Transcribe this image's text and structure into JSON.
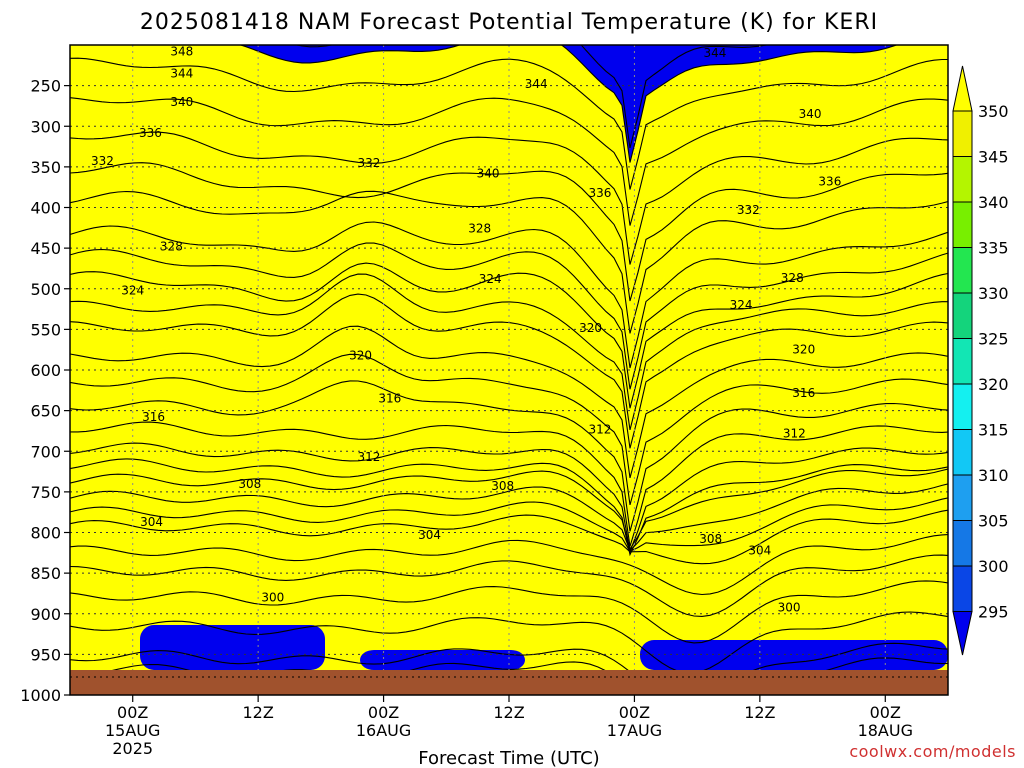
{
  "chart_data": {
    "type": "contour",
    "title": "2025081418 NAM Forecast Potential Temperature (K) for KERI",
    "xlabel": "Forecast Time (UTC)",
    "credit": "coolwx.com/models",
    "x_ticks": [
      {
        "hour": 6,
        "label": "00Z",
        "date": "15AUG",
        "year": "2025"
      },
      {
        "hour": 18,
        "label": "12Z",
        "date": "",
        "year": ""
      },
      {
        "hour": 30,
        "label": "00Z",
        "date": "16AUG",
        "year": ""
      },
      {
        "hour": 42,
        "label": "12Z",
        "date": "",
        "year": ""
      },
      {
        "hour": 54,
        "label": "00Z",
        "date": "17AUG",
        "year": ""
      },
      {
        "hour": 66,
        "label": "12Z",
        "date": "",
        "year": ""
      },
      {
        "hour": 78,
        "label": "00Z",
        "date": "18AUG",
        "year": ""
      }
    ],
    "x_range_hours": [
      0,
      84
    ],
    "y_ticks": [
      250,
      300,
      350,
      400,
      450,
      500,
      550,
      600,
      650,
      700,
      750,
      800,
      850,
      900,
      950,
      1000
    ],
    "y_range_hPa": [
      200,
      1000
    ],
    "colorbar": {
      "labels": [
        350,
        345,
        340,
        335,
        330,
        325,
        320,
        315,
        310,
        305,
        300,
        295
      ],
      "levels": [
        295,
        300,
        305,
        310,
        315,
        320,
        325,
        330,
        335,
        340,
        345,
        350
      ],
      "colors": [
        "#0000ee",
        "#0a46e6",
        "#1578e6",
        "#1e9ff0",
        "#12c8f5",
        "#14f0f0",
        "#12e6b4",
        "#14d47c",
        "#23e650",
        "#78ef00",
        "#b4f500",
        "#f0f000",
        "#ffff00"
      ]
    },
    "contour_labels": [
      {
        "value": "348",
        "hour": 10.7,
        "p": 208
      },
      {
        "value": "344",
        "hour": 10.7,
        "p": 235
      },
      {
        "value": "344",
        "hour": 44.6,
        "p": 248
      },
      {
        "value": "344",
        "hour": 61.7,
        "p": 210
      },
      {
        "value": "340",
        "hour": 10.7,
        "p": 270
      },
      {
        "value": "340",
        "hour": 70.8,
        "p": 285
      },
      {
        "value": "340",
        "hour": 40.0,
        "p": 358
      },
      {
        "value": "336",
        "hour": 7.7,
        "p": 308
      },
      {
        "value": "336",
        "hour": 50.7,
        "p": 382
      },
      {
        "value": "336",
        "hour": 72.7,
        "p": 368
      },
      {
        "value": "332",
        "hour": 3.1,
        "p": 343
      },
      {
        "value": "332",
        "hour": 28.6,
        "p": 345
      },
      {
        "value": "332",
        "hour": 64.9,
        "p": 403
      },
      {
        "value": "328",
        "hour": 9.7,
        "p": 448
      },
      {
        "value": "328",
        "hour": 39.2,
        "p": 426
      },
      {
        "value": "328",
        "hour": 69.1,
        "p": 487
      },
      {
        "value": "324",
        "hour": 6.0,
        "p": 502
      },
      {
        "value": "324",
        "hour": 40.2,
        "p": 488
      },
      {
        "value": "324",
        "hour": 64.2,
        "p": 520
      },
      {
        "value": "320",
        "hour": 27.8,
        "p": 582
      },
      {
        "value": "320",
        "hour": 49.8,
        "p": 548
      },
      {
        "value": "320",
        "hour": 70.2,
        "p": 575
      },
      {
        "value": "316",
        "hour": 8.0,
        "p": 658
      },
      {
        "value": "316",
        "hour": 30.6,
        "p": 635
      },
      {
        "value": "316",
        "hour": 70.2,
        "p": 628
      },
      {
        "value": "312",
        "hour": 28.6,
        "p": 707
      },
      {
        "value": "312",
        "hour": 50.7,
        "p": 673
      },
      {
        "value": "312",
        "hour": 69.3,
        "p": 678
      },
      {
        "value": "308",
        "hour": 17.2,
        "p": 740
      },
      {
        "value": "308",
        "hour": 41.4,
        "p": 743
      },
      {
        "value": "308",
        "hour": 61.3,
        "p": 808
      },
      {
        "value": "304",
        "hour": 7.8,
        "p": 787
      },
      {
        "value": "304",
        "hour": 34.4,
        "p": 803
      },
      {
        "value": "304",
        "hour": 66.0,
        "p": 822
      },
      {
        "value": "300",
        "hour": 19.4,
        "p": 880
      },
      {
        "value": "300",
        "hour": 68.8,
        "p": 892
      }
    ]
  }
}
